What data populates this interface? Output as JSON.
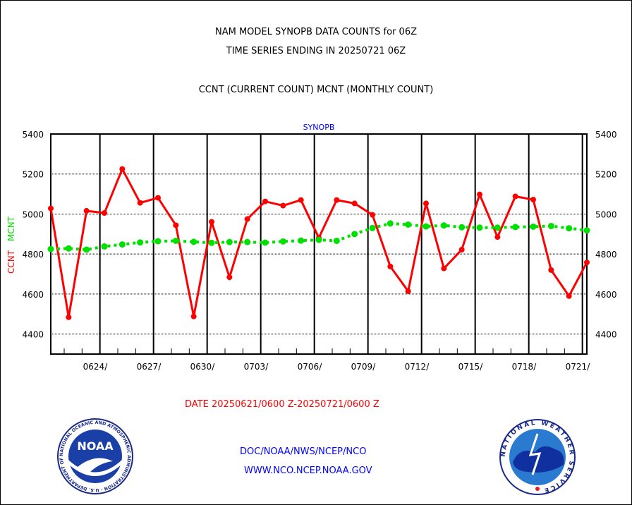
{
  "header": {
    "title_line1": "NAM MODEL SYNOPB DATA COUNTS for 06Z",
    "title_line2": "TIME SERIES ENDING IN 20250721 06Z",
    "legend_line": "CCNT (CURRENT COUNT) MCNT (MONTHLY COUNT)"
  },
  "footer": {
    "date_range": "DATE 20250621/0600 Z-20250721/0600 Z",
    "org_path": "DOC/NOAA/NWS/NCEP/NCO",
    "website": "WWW.NCO.NCEP.NOAA.GOV",
    "noaa_logo_text": "NOAA",
    "noaa_ring_text": "NATIONAL OCEANIC AND ATMOSPHERIC ADMINISTRATION · U.S. DEPARTMENT OF COMMERCE",
    "nws_ring_text": "NATIONAL WEATHER SERVICE"
  },
  "colors": {
    "ccnt": "#ff0000",
    "mcnt": "#00e000",
    "subtitle": "#0000ff"
  },
  "chart_data": {
    "type": "line",
    "title": "SYNOPB",
    "ylabel_ccnt": "CCNT",
    "ylabel_mcnt": "MCNT",
    "ylim": [
      4300,
      5400
    ],
    "yticks": [
      4400,
      4600,
      4800,
      5000,
      5200,
      5400
    ],
    "xtick_labels": [
      "0624/",
      "0627/",
      "0630/",
      "0703/",
      "0706/",
      "0709/",
      "0712/",
      "0715/",
      "0718/",
      "0721/"
    ],
    "x_days": [
      "0621",
      "0622",
      "0623",
      "0624",
      "0625",
      "0626",
      "0627",
      "0628",
      "0629",
      "0630",
      "0701",
      "0702",
      "0703",
      "0704",
      "0705",
      "0706",
      "0707",
      "0708",
      "0709",
      "0710",
      "0711",
      "0712",
      "0713",
      "0714",
      "0715",
      "0716",
      "0717",
      "0718",
      "0719",
      "0720",
      "0721"
    ],
    "grid": true,
    "series": [
      {
        "name": "CCNT",
        "values": [
          5028,
          4484,
          5016,
          5005,
          5225,
          5056,
          5081,
          4944,
          4488,
          4961,
          4684,
          4975,
          5063,
          5042,
          5070,
          4881,
          5070,
          5053,
          4996,
          4738,
          4614,
          5053,
          4728,
          4822,
          5098,
          4885,
          5088,
          5072,
          4720,
          4590,
          4758
        ]
      },
      {
        "name": "MCNT",
        "values": [
          4825,
          4828,
          4822,
          4838,
          4848,
          4858,
          4864,
          4866,
          4861,
          4856,
          4860,
          4860,
          4857,
          4863,
          4867,
          4871,
          4866,
          4900,
          4930,
          4953,
          4947,
          4938,
          4943,
          4934,
          4932,
          4932,
          4935,
          4937,
          4940,
          4929,
          4918
        ]
      }
    ]
  }
}
